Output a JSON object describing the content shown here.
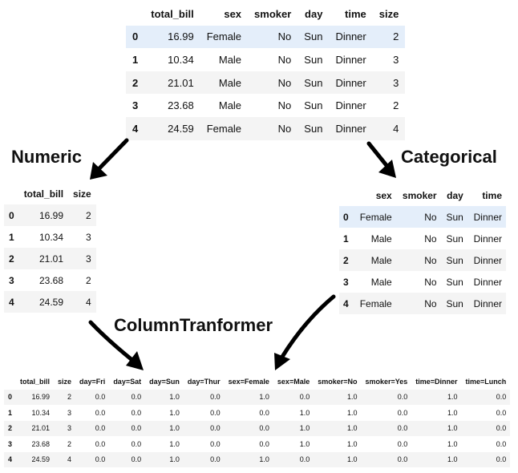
{
  "labels": {
    "numeric": "Numeric",
    "categorical": "Categorical",
    "transformer": "ColumnTranformer"
  },
  "top_table": {
    "columns": [
      "",
      "total_bill",
      "sex",
      "smoker",
      "day",
      "time",
      "size"
    ],
    "rows": [
      [
        "0",
        "16.99",
        "Female",
        "No",
        "Sun",
        "Dinner",
        "2"
      ],
      [
        "1",
        "10.34",
        "Male",
        "No",
        "Sun",
        "Dinner",
        "3"
      ],
      [
        "2",
        "21.01",
        "Male",
        "No",
        "Sun",
        "Dinner",
        "3"
      ],
      [
        "3",
        "23.68",
        "Male",
        "No",
        "Sun",
        "Dinner",
        "2"
      ],
      [
        "4",
        "24.59",
        "Female",
        "No",
        "Sun",
        "Dinner",
        "4"
      ]
    ]
  },
  "numeric_table": {
    "columns": [
      "",
      "total_bill",
      "size"
    ],
    "rows": [
      [
        "0",
        "16.99",
        "2"
      ],
      [
        "1",
        "10.34",
        "3"
      ],
      [
        "2",
        "21.01",
        "3"
      ],
      [
        "3",
        "23.68",
        "2"
      ],
      [
        "4",
        "24.59",
        "4"
      ]
    ]
  },
  "categorical_table": {
    "columns": [
      "",
      "sex",
      "smoker",
      "day",
      "time"
    ],
    "rows": [
      [
        "0",
        "Female",
        "No",
        "Sun",
        "Dinner"
      ],
      [
        "1",
        "Male",
        "No",
        "Sun",
        "Dinner"
      ],
      [
        "2",
        "Male",
        "No",
        "Sun",
        "Dinner"
      ],
      [
        "3",
        "Male",
        "No",
        "Sun",
        "Dinner"
      ],
      [
        "4",
        "Female",
        "No",
        "Sun",
        "Dinner"
      ]
    ]
  },
  "output_table": {
    "columns": [
      "",
      "total_bill",
      "size",
      "day=Fri",
      "day=Sat",
      "day=Sun",
      "day=Thur",
      "sex=Female",
      "sex=Male",
      "smoker=No",
      "smoker=Yes",
      "time=Dinner",
      "time=Lunch"
    ],
    "rows": [
      [
        "0",
        "16.99",
        "2",
        "0.0",
        "0.0",
        "1.0",
        "0.0",
        "1.0",
        "0.0",
        "1.0",
        "0.0",
        "1.0",
        "0.0"
      ],
      [
        "1",
        "10.34",
        "3",
        "0.0",
        "0.0",
        "1.0",
        "0.0",
        "0.0",
        "1.0",
        "1.0",
        "0.0",
        "1.0",
        "0.0"
      ],
      [
        "2",
        "21.01",
        "3",
        "0.0",
        "0.0",
        "1.0",
        "0.0",
        "0.0",
        "1.0",
        "1.0",
        "0.0",
        "1.0",
        "0.0"
      ],
      [
        "3",
        "23.68",
        "2",
        "0.0",
        "0.0",
        "1.0",
        "0.0",
        "0.0",
        "1.0",
        "1.0",
        "0.0",
        "1.0",
        "0.0"
      ],
      [
        "4",
        "24.59",
        "4",
        "0.0",
        "0.0",
        "1.0",
        "0.0",
        "1.0",
        "0.0",
        "1.0",
        "0.0",
        "1.0",
        "0.0"
      ]
    ]
  },
  "colors": {
    "highlight_row": "#e4eefa",
    "stripe_row": "#f4f4f4",
    "arrow": "#000000"
  }
}
